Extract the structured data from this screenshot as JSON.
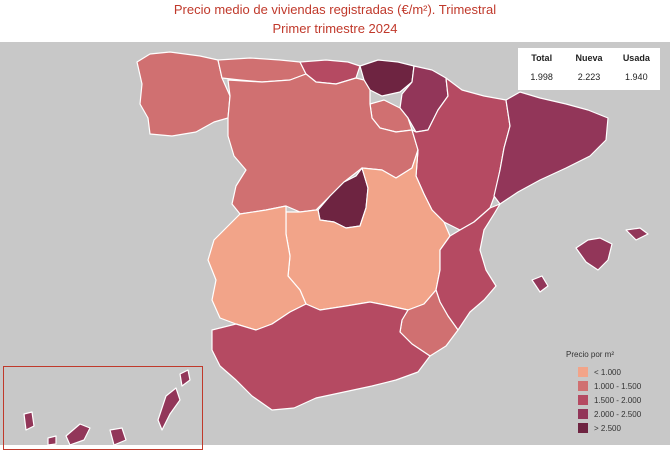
{
  "title": {
    "line1": "Precio medio de viviendas registradas (€/m²). Trimestral",
    "line2": "Primer trimestre 2024"
  },
  "summary": {
    "headers": [
      "Total",
      "Nueva",
      "Usada"
    ],
    "values": [
      "1.998",
      "2.223",
      "1.940"
    ]
  },
  "legend": {
    "title": "Precio por m²",
    "items": [
      {
        "label": "< 1.000",
        "color": "#f2a489"
      },
      {
        "label": "1.000 - 1.500",
        "color": "#d07071"
      },
      {
        "label": "1.500 - 2.000",
        "color": "#b54a62"
      },
      {
        "label": "2.000 - 2.500",
        "color": "#923659"
      },
      {
        "label": "> 2.500",
        "color": "#6e2441"
      }
    ]
  },
  "map": {
    "sea_color": "#c8c8c8",
    "regions": [
      {
        "name": "Galicia",
        "class": "1.000 - 1.500"
      },
      {
        "name": "Asturias",
        "class": "1.000 - 1.500"
      },
      {
        "name": "Cantabria",
        "class": "1.500 - 2.000"
      },
      {
        "name": "País Vasco",
        "class": "> 2.500"
      },
      {
        "name": "Navarra",
        "class": "2.000 - 2.500"
      },
      {
        "name": "La Rioja",
        "class": "1.000 - 1.500"
      },
      {
        "name": "Castilla y León",
        "class": "1.000 - 1.500"
      },
      {
        "name": "Aragón",
        "class": "1.500 - 2.000"
      },
      {
        "name": "Cataluña",
        "class": "2.000 - 2.500"
      },
      {
        "name": "Madrid",
        "class": "> 2.500"
      },
      {
        "name": "Castilla-La Mancha",
        "class": "< 1.000"
      },
      {
        "name": "Extremadura",
        "class": "< 1.000"
      },
      {
        "name": "Comunitat Valenciana",
        "class": "1.500 - 2.000"
      },
      {
        "name": "Murcia",
        "class": "1.000 - 1.500"
      },
      {
        "name": "Andalucía",
        "class": "1.500 - 2.000"
      },
      {
        "name": "Illes Balears",
        "class": "2.000 - 2.500"
      },
      {
        "name": "Canarias",
        "class": "2.000 - 2.500"
      }
    ]
  }
}
